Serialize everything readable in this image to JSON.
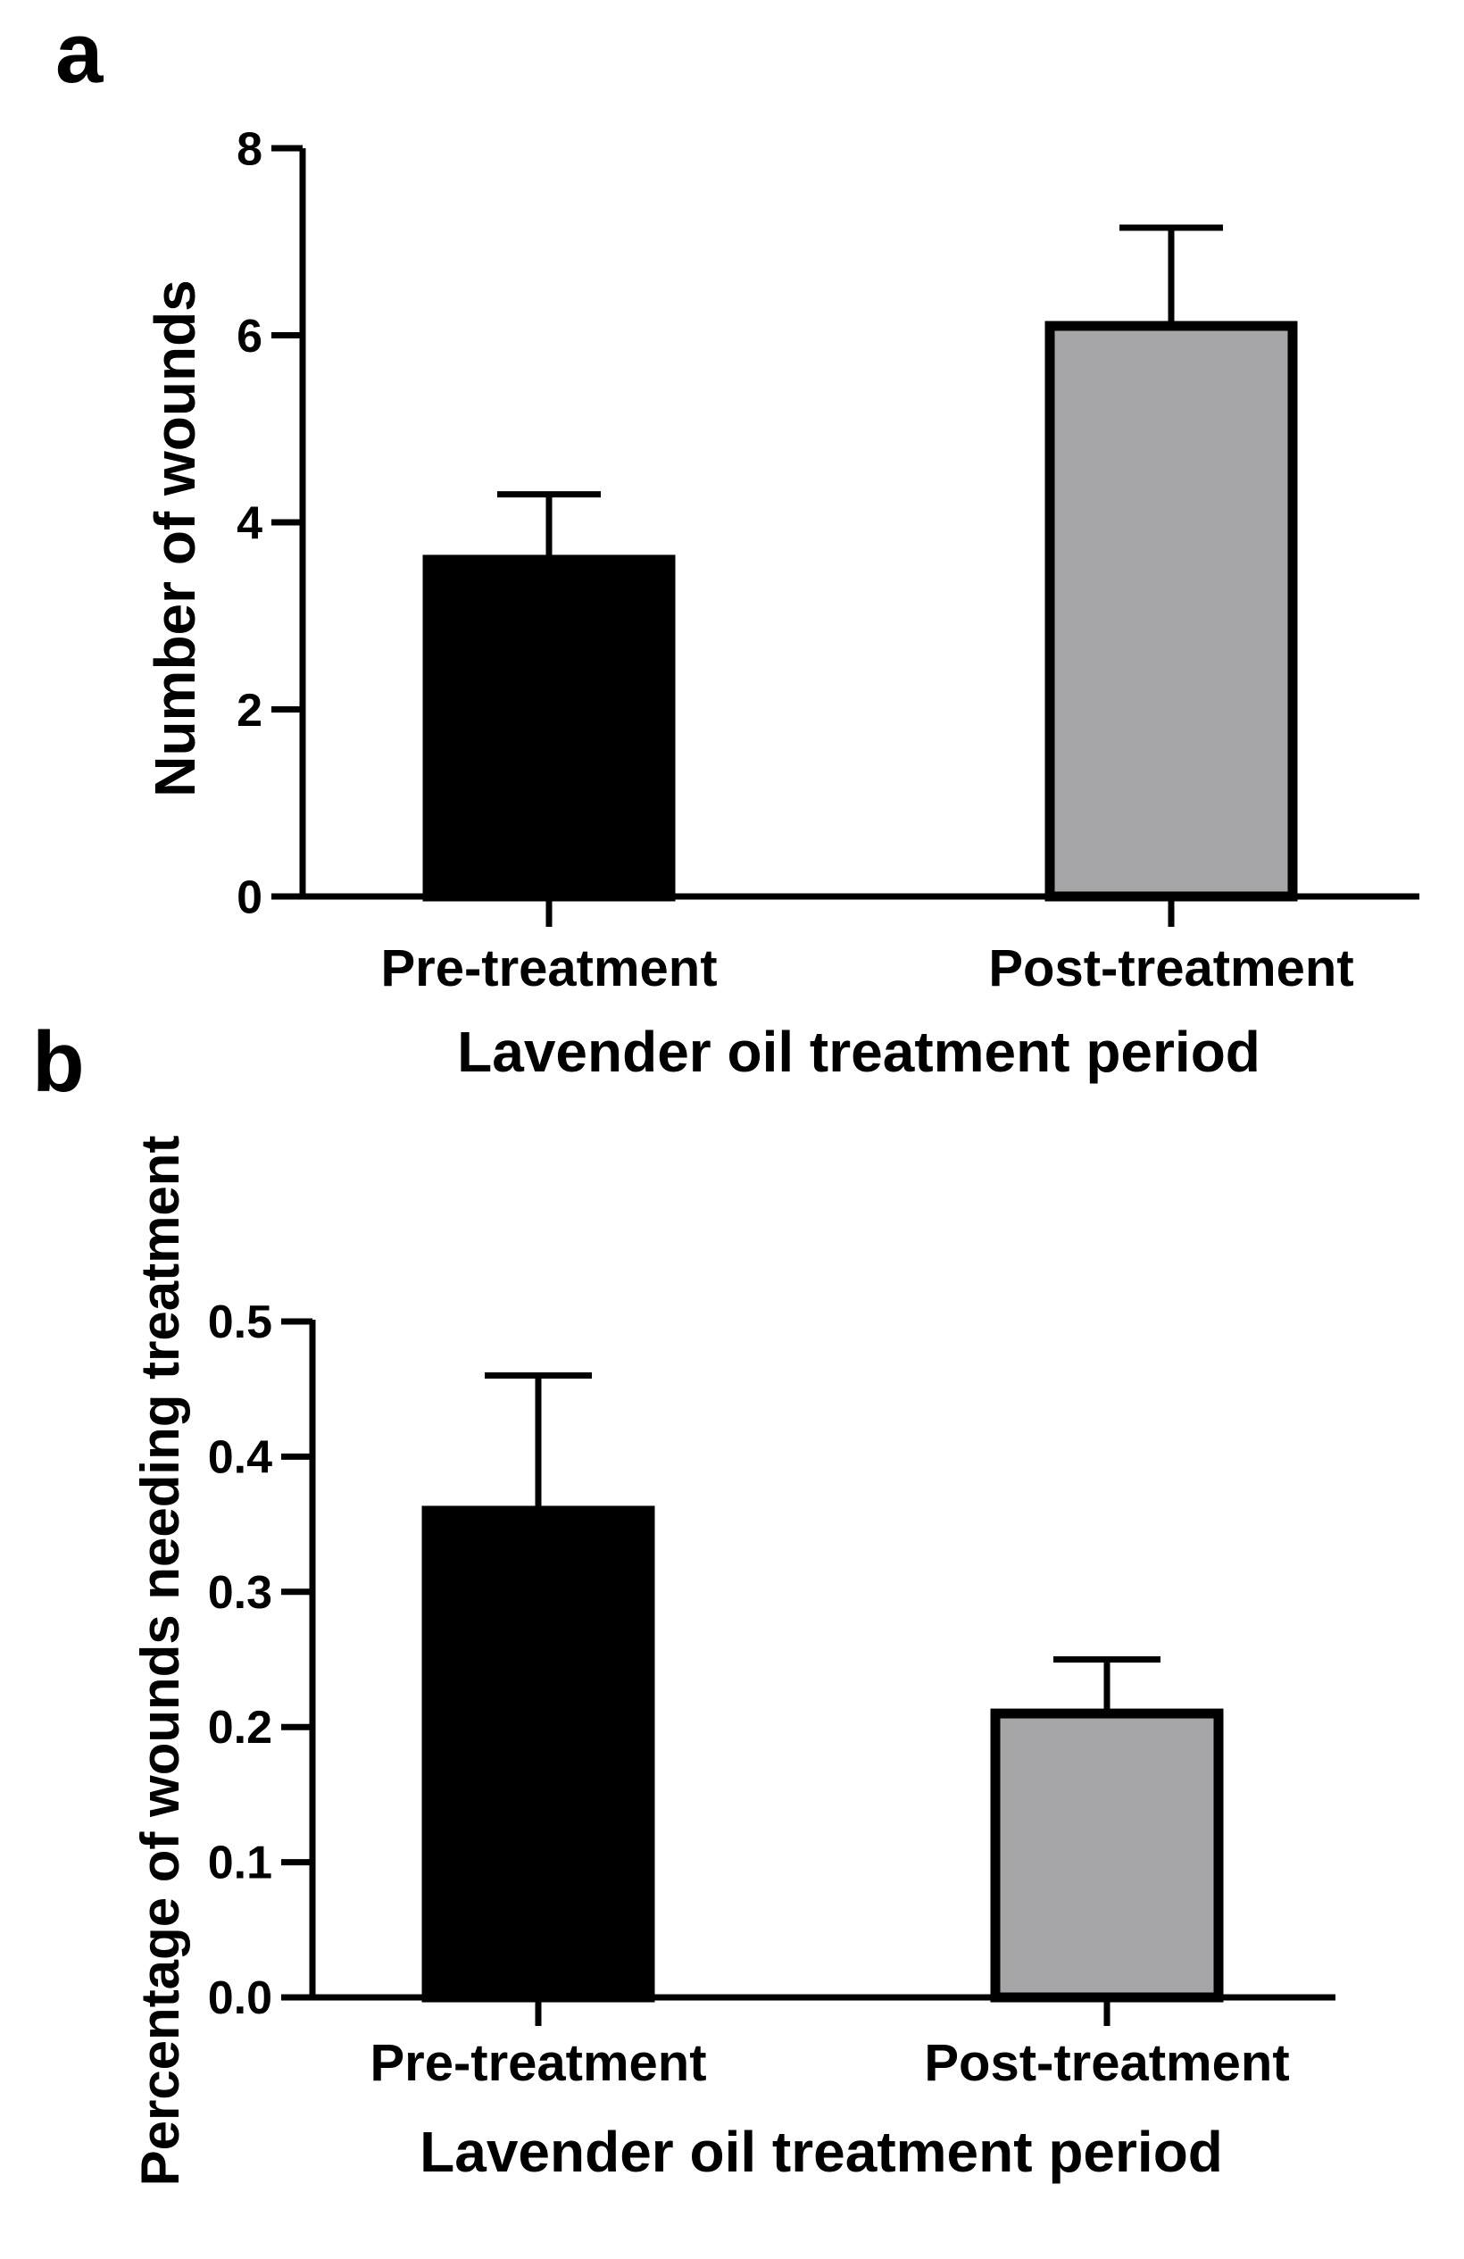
{
  "figure": {
    "background": "#ffffff"
  },
  "chart_data": [
    {
      "panel": "a",
      "type": "bar",
      "categories": [
        "Pre-treatment",
        "Post-treatment"
      ],
      "values": [
        3.6,
        6.1
      ],
      "error_upper": [
        4.3,
        7.15
      ],
      "colors": [
        "#000000",
        "#a6a6a8"
      ],
      "title": "",
      "xlabel": "Lavender oil treatment period",
      "ylabel": "Number of wounds",
      "ylim": [
        0,
        8
      ],
      "yticks": [
        0,
        2,
        4,
        6,
        8
      ],
      "ytick_labels": [
        "0",
        "2",
        "4",
        "6",
        "8"
      ],
      "grid": false,
      "legend": "none"
    },
    {
      "panel": "b",
      "type": "bar",
      "categories": [
        "Pre-treatment",
        "Post-treatment"
      ],
      "values": [
        0.36,
        0.21
      ],
      "error_upper": [
        0.46,
        0.25
      ],
      "colors": [
        "#000000",
        "#a6a6a8"
      ],
      "title": "",
      "xlabel": "Lavender oil treatment period",
      "ylabel": "Percentage of wounds needing treatment",
      "ylim": [
        0,
        0.5
      ],
      "yticks": [
        0,
        0.1,
        0.2,
        0.3,
        0.4,
        0.5
      ],
      "ytick_labels": [
        "0.0",
        "0.1",
        "0.2",
        "0.3",
        "0.4",
        "0.5"
      ],
      "grid": false,
      "legend": "none"
    }
  ]
}
